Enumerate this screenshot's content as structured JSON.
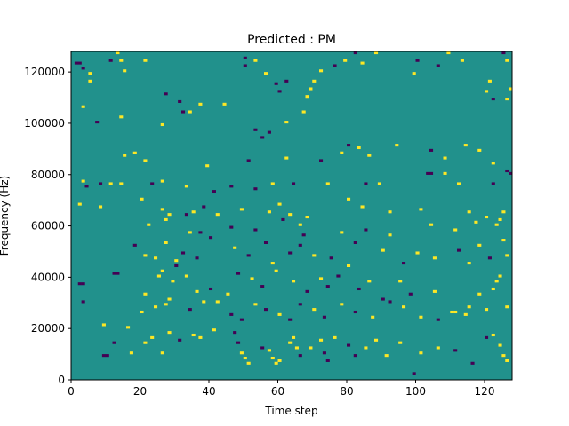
{
  "chart_data": {
    "type": "heatmap",
    "title": "Predicted : PM",
    "xlabel": "Time step",
    "ylabel": "Frequency (Hz)",
    "xlim": [
      0,
      128
    ],
    "ylim": [
      0,
      128000
    ],
    "xticks": [
      "0",
      "20",
      "40",
      "60",
      "80",
      "100",
      "120"
    ],
    "yticks": [
      "0",
      "20000",
      "40000",
      "60000",
      "80000",
      "100000",
      "120000"
    ],
    "colors": {
      "background": "#21918c",
      "low": "#440154",
      "high": "#fde725"
    },
    "grid_note": "128 time steps x 128 frequency bins (1000 Hz each); most cells are mid-value (teal), sparse cells are low (purple) or high (yellow)",
    "cells": [
      [
        1,
        123,
        "low"
      ],
      [
        2,
        123,
        "low"
      ],
      [
        3,
        121,
        "low"
      ],
      [
        5,
        119,
        "high"
      ],
      [
        5,
        116,
        "high"
      ],
      [
        3,
        106,
        "high"
      ],
      [
        11,
        124,
        "low"
      ],
      [
        14,
        124,
        "high"
      ],
      [
        13,
        127,
        "high"
      ],
      [
        15,
        120,
        "high"
      ],
      [
        21,
        124,
        "high"
      ],
      [
        27,
        111,
        "low"
      ],
      [
        31,
        108,
        "low"
      ],
      [
        32,
        104,
        "low"
      ],
      [
        34,
        104,
        "high"
      ],
      [
        37,
        107,
        "high"
      ],
      [
        44,
        107,
        "high"
      ],
      [
        50,
        125,
        "low"
      ],
      [
        50,
        122,
        "low"
      ],
      [
        53,
        124,
        "high"
      ],
      [
        56,
        119,
        "high"
      ],
      [
        59,
        115,
        "low"
      ],
      [
        60,
        112,
        "low"
      ],
      [
        62,
        116,
        "low"
      ],
      [
        67,
        104,
        "high"
      ],
      [
        68,
        110,
        "high"
      ],
      [
        69,
        113,
        "high"
      ],
      [
        70,
        116,
        "high"
      ],
      [
        72,
        120,
        "high"
      ],
      [
        76,
        122,
        "low"
      ],
      [
        79,
        124,
        "high"
      ],
      [
        82,
        127,
        "low"
      ],
      [
        84,
        123,
        "high"
      ],
      [
        88,
        127,
        "high"
      ],
      [
        99,
        119,
        "high"
      ],
      [
        100,
        124,
        "low"
      ],
      [
        106,
        122,
        "low"
      ],
      [
        109,
        127,
        "high"
      ],
      [
        113,
        124,
        "high"
      ],
      [
        120,
        112,
        "high"
      ],
      [
        121,
        116,
        "high"
      ],
      [
        122,
        109,
        "low"
      ],
      [
        125,
        127,
        "low"
      ],
      [
        126,
        124,
        "high"
      ],
      [
        127,
        113,
        "high"
      ],
      [
        126,
        109,
        "high"
      ],
      [
        7,
        100,
        "low"
      ],
      [
        14,
        102,
        "high"
      ],
      [
        26,
        99,
        "high"
      ],
      [
        53,
        97,
        "low"
      ],
      [
        55,
        94,
        "low"
      ],
      [
        57,
        96,
        "low"
      ],
      [
        62,
        100,
        "high"
      ],
      [
        80,
        91,
        "low"
      ],
      [
        83,
        90,
        "high"
      ],
      [
        86,
        87,
        "high"
      ],
      [
        94,
        91,
        "high"
      ],
      [
        104,
        89,
        "low"
      ],
      [
        108,
        86,
        "high"
      ],
      [
        114,
        91,
        "high"
      ],
      [
        118,
        89,
        "high"
      ],
      [
        122,
        84,
        "high"
      ],
      [
        15,
        87,
        "high"
      ],
      [
        18,
        88,
        "high"
      ],
      [
        21,
        85,
        "high"
      ],
      [
        39,
        83,
        "high"
      ],
      [
        51,
        85,
        "low"
      ],
      [
        62,
        86,
        "high"
      ],
      [
        72,
        85,
        "low"
      ],
      [
        78,
        88,
        "high"
      ],
      [
        3,
        77,
        "high"
      ],
      [
        4,
        75,
        "low"
      ],
      [
        8,
        76,
        "low"
      ],
      [
        11,
        76,
        "high"
      ],
      [
        14,
        76,
        "high"
      ],
      [
        23,
        76,
        "low"
      ],
      [
        26,
        77,
        "high"
      ],
      [
        33,
        75,
        "high"
      ],
      [
        41,
        73,
        "low"
      ],
      [
        46,
        75,
        "low"
      ],
      [
        53,
        74,
        "low"
      ],
      [
        58,
        76,
        "high"
      ],
      [
        64,
        76,
        "low"
      ],
      [
        74,
        76,
        "high"
      ],
      [
        85,
        76,
        "low"
      ],
      [
        89,
        76,
        "high"
      ],
      [
        103,
        80,
        "low"
      ],
      [
        104,
        80,
        "low"
      ],
      [
        108,
        80,
        "high"
      ],
      [
        112,
        76,
        "high"
      ],
      [
        122,
        76,
        "low"
      ],
      [
        126,
        81,
        "low"
      ],
      [
        127,
        80,
        "low"
      ],
      [
        2,
        68,
        "high"
      ],
      [
        8,
        67,
        "high"
      ],
      [
        20,
        70,
        "high"
      ],
      [
        26,
        66,
        "high"
      ],
      [
        28,
        64,
        "high"
      ],
      [
        33,
        64,
        "low"
      ],
      [
        35,
        65,
        "high"
      ],
      [
        38,
        67,
        "low"
      ],
      [
        42,
        64,
        "high"
      ],
      [
        49,
        66,
        "high"
      ],
      [
        57,
        65,
        "high"
      ],
      [
        60,
        68,
        "high"
      ],
      [
        63,
        64,
        "high"
      ],
      [
        68,
        63,
        "high"
      ],
      [
        80,
        70,
        "high"
      ],
      [
        84,
        67,
        "high"
      ],
      [
        92,
        65,
        "high"
      ],
      [
        101,
        66,
        "high"
      ],
      [
        115,
        65,
        "high"
      ],
      [
        120,
        63,
        "high"
      ],
      [
        125,
        65,
        "high"
      ],
      [
        22,
        60,
        "high"
      ],
      [
        27,
        62,
        "high"
      ],
      [
        34,
        57,
        "high"
      ],
      [
        37,
        57,
        "low"
      ],
      [
        46,
        59,
        "low"
      ],
      [
        53,
        58,
        "low"
      ],
      [
        61,
        62,
        "low"
      ],
      [
        66,
        60,
        "high"
      ],
      [
        67,
        56,
        "low"
      ],
      [
        78,
        57,
        "high"
      ],
      [
        85,
        58,
        "low"
      ],
      [
        92,
        56,
        "high"
      ],
      [
        104,
        60,
        "high"
      ],
      [
        111,
        58,
        "high"
      ],
      [
        117,
        61,
        "high"
      ],
      [
        123,
        60,
        "high"
      ],
      [
        124,
        62,
        "high"
      ],
      [
        125,
        54,
        "high"
      ],
      [
        18,
        52,
        "low"
      ],
      [
        21,
        48,
        "high"
      ],
      [
        24,
        47,
        "high"
      ],
      [
        27,
        53,
        "high"
      ],
      [
        30,
        46,
        "high"
      ],
      [
        32,
        49,
        "low"
      ],
      [
        36,
        47,
        "low"
      ],
      [
        40,
        55,
        "low"
      ],
      [
        47,
        51,
        "high"
      ],
      [
        51,
        48,
        "low"
      ],
      [
        56,
        53,
        "low"
      ],
      [
        58,
        45,
        "high"
      ],
      [
        63,
        49,
        "low"
      ],
      [
        66,
        52,
        "low"
      ],
      [
        70,
        48,
        "high"
      ],
      [
        75,
        47,
        "low"
      ],
      [
        82,
        53,
        "low"
      ],
      [
        90,
        50,
        "high"
      ],
      [
        96,
        45,
        "low"
      ],
      [
        100,
        49,
        "high"
      ],
      [
        105,
        47,
        "high"
      ],
      [
        112,
        50,
        "low"
      ],
      [
        115,
        45,
        "high"
      ],
      [
        118,
        52,
        "high"
      ],
      [
        121,
        47,
        "low"
      ],
      [
        126,
        48,
        "high"
      ],
      [
        2,
        37,
        "low"
      ],
      [
        3,
        37,
        "low"
      ],
      [
        12,
        41,
        "low"
      ],
      [
        13,
        41,
        "low"
      ],
      [
        21,
        33,
        "high"
      ],
      [
        25,
        40,
        "high"
      ],
      [
        26,
        42,
        "high"
      ],
      [
        29,
        38,
        "high"
      ],
      [
        30,
        44,
        "low"
      ],
      [
        33,
        40,
        "high"
      ],
      [
        36,
        34,
        "high"
      ],
      [
        40,
        35,
        "low"
      ],
      [
        45,
        33,
        "high"
      ],
      [
        48,
        41,
        "low"
      ],
      [
        52,
        39,
        "high"
      ],
      [
        55,
        36,
        "low"
      ],
      [
        59,
        42,
        "high"
      ],
      [
        64,
        38,
        "high"
      ],
      [
        68,
        34,
        "low"
      ],
      [
        72,
        39,
        "high"
      ],
      [
        74,
        36,
        "low"
      ],
      [
        77,
        40,
        "low"
      ],
      [
        80,
        44,
        "high"
      ],
      [
        83,
        35,
        "low"
      ],
      [
        86,
        38,
        "high"
      ],
      [
        90,
        31,
        "low"
      ],
      [
        95,
        38,
        "high"
      ],
      [
        98,
        33,
        "low"
      ],
      [
        105,
        34,
        "high"
      ],
      [
        115,
        28,
        "high"
      ],
      [
        118,
        33,
        "high"
      ],
      [
        122,
        35,
        "high"
      ],
      [
        123,
        38,
        "high"
      ],
      [
        124,
        40,
        "high"
      ],
      [
        3,
        30,
        "low"
      ],
      [
        9,
        21,
        "high"
      ],
      [
        16,
        20,
        "high"
      ],
      [
        20,
        26,
        "high"
      ],
      [
        24,
        28,
        "high"
      ],
      [
        27,
        29,
        "high"
      ],
      [
        28,
        31,
        "high"
      ],
      [
        34,
        27,
        "low"
      ],
      [
        38,
        30,
        "high"
      ],
      [
        42,
        30,
        "high"
      ],
      [
        46,
        25,
        "low"
      ],
      [
        49,
        23,
        "low"
      ],
      [
        53,
        29,
        "high"
      ],
      [
        56,
        27,
        "low"
      ],
      [
        60,
        25,
        "high"
      ],
      [
        63,
        23,
        "low"
      ],
      [
        66,
        29,
        "low"
      ],
      [
        70,
        27,
        "high"
      ],
      [
        73,
        24,
        "low"
      ],
      [
        78,
        29,
        "high"
      ],
      [
        82,
        26,
        "low"
      ],
      [
        87,
        24,
        "high"
      ],
      [
        92,
        30,
        "low"
      ],
      [
        96,
        28,
        "high"
      ],
      [
        101,
        24,
        "high"
      ],
      [
        106,
        23,
        "low"
      ],
      [
        110,
        26,
        "high"
      ],
      [
        111,
        26,
        "high"
      ],
      [
        114,
        25,
        "high"
      ],
      [
        120,
        27,
        "high"
      ],
      [
        126,
        28,
        "high"
      ],
      [
        9,
        9,
        "low"
      ],
      [
        10,
        9,
        "low"
      ],
      [
        12,
        14,
        "low"
      ],
      [
        17,
        10,
        "high"
      ],
      [
        21,
        14,
        "high"
      ],
      [
        23,
        16,
        "high"
      ],
      [
        26,
        10,
        "high"
      ],
      [
        28,
        18,
        "high"
      ],
      [
        31,
        15,
        "low"
      ],
      [
        35,
        17,
        "high"
      ],
      [
        37,
        16,
        "high"
      ],
      [
        41,
        19,
        "high"
      ],
      [
        47,
        18,
        "low"
      ],
      [
        48,
        14,
        "low"
      ],
      [
        49,
        10,
        "high"
      ],
      [
        50,
        8,
        "high"
      ],
      [
        51,
        6,
        "high"
      ],
      [
        55,
        12,
        "low"
      ],
      [
        57,
        11,
        "high"
      ],
      [
        58,
        8,
        "high"
      ],
      [
        59,
        6,
        "high"
      ],
      [
        60,
        7,
        "high"
      ],
      [
        63,
        14,
        "high"
      ],
      [
        64,
        16,
        "high"
      ],
      [
        65,
        12,
        "high"
      ],
      [
        66,
        9,
        "low"
      ],
      [
        69,
        12,
        "high"
      ],
      [
        72,
        15,
        "high"
      ],
      [
        73,
        10,
        "low"
      ],
      [
        74,
        7,
        "low"
      ],
      [
        76,
        16,
        "high"
      ],
      [
        80,
        13,
        "low"
      ],
      [
        82,
        9,
        "low"
      ],
      [
        85,
        12,
        "high"
      ],
      [
        88,
        15,
        "high"
      ],
      [
        91,
        9,
        "high"
      ],
      [
        95,
        14,
        "high"
      ],
      [
        99,
        2,
        "low"
      ],
      [
        101,
        10,
        "high"
      ],
      [
        106,
        12,
        "high"
      ],
      [
        111,
        11,
        "low"
      ],
      [
        116,
        6,
        "low"
      ],
      [
        120,
        16,
        "low"
      ],
      [
        122,
        17,
        "high"
      ],
      [
        124,
        13,
        "high"
      ],
      [
        125,
        9,
        "high"
      ],
      [
        126,
        7,
        "high"
      ]
    ]
  }
}
